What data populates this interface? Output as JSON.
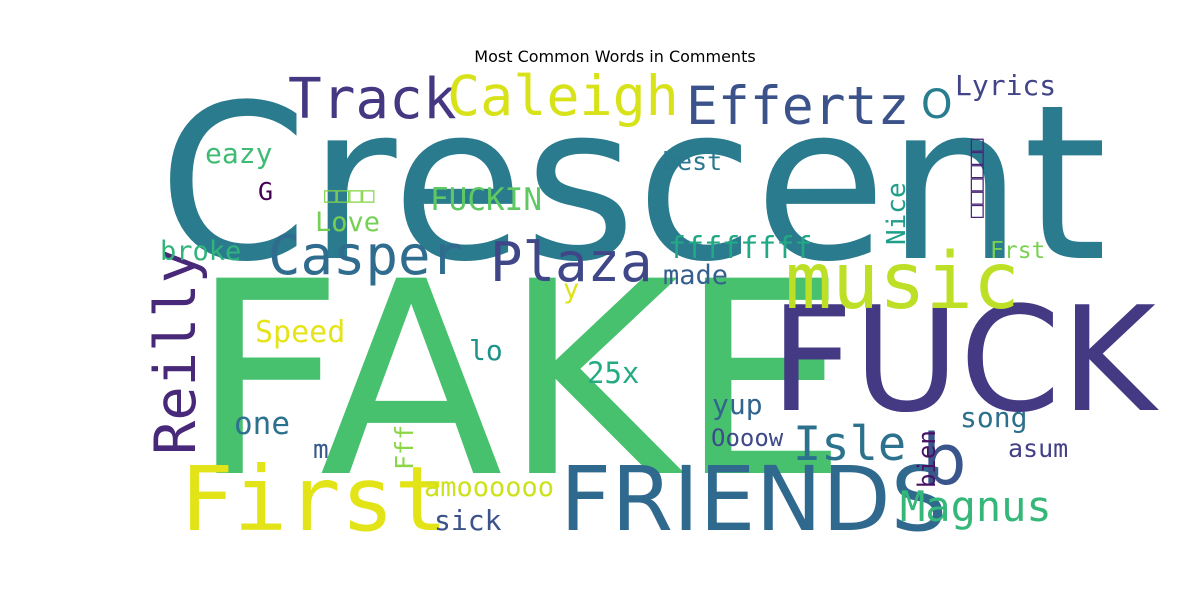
{
  "chart_data": {
    "type": "wordcloud",
    "title": "Most Common Words in Comments",
    "background": "#ffffff",
    "words": [
      {
        "text": "Crescent",
        "color": "#2a7b8e"
      },
      {
        "text": "FAKE",
        "color": "#47c16e"
      },
      {
        "text": "FUCK",
        "color": "#443983"
      },
      {
        "text": "FRIENDS",
        "color": "#30698e"
      },
      {
        "text": "music",
        "color": "#bddf26"
      },
      {
        "text": "First",
        "color": "#e2e418"
      },
      {
        "text": "Track",
        "color": "#453781"
      },
      {
        "text": "Caleigh",
        "color": "#d8e219"
      },
      {
        "text": "Effertz",
        "color": "#3b528b"
      },
      {
        "text": "Casper",
        "color": "#2f6c8e"
      },
      {
        "text": "Plaza",
        "color": "#3f4788"
      },
      {
        "text": "Reilly",
        "color": "#482878"
      },
      {
        "text": "Isle",
        "color": "#2c728e"
      },
      {
        "text": "Magnus",
        "color": "#35b779"
      },
      {
        "text": "b",
        "color": "#3a548c"
      },
      {
        "text": "O",
        "color": "#287d8e"
      },
      {
        "text": "Lyrics",
        "color": "#414487"
      },
      {
        "text": "eazy",
        "color": "#3fbc73"
      },
      {
        "text": "best",
        "color": "#2a788e"
      },
      {
        "text": "G",
        "color": "#440154"
      },
      {
        "text": "□□□□",
        "color": "#84d44b"
      },
      {
        "text": "FUCKIN",
        "color": "#5ec962"
      },
      {
        "text": "□□□□□□",
        "color": "#482475"
      },
      {
        "text": "Love",
        "color": "#75d054"
      },
      {
        "text": "Nice",
        "color": "#1f9e89"
      },
      {
        "text": "ffffffff",
        "color": "#22a884"
      },
      {
        "text": "Frst",
        "color": "#7ad151"
      },
      {
        "text": "broke",
        "color": "#2fb47c"
      },
      {
        "text": "made",
        "color": "#355f8d"
      },
      {
        "text": "y",
        "color": "#dde318"
      },
      {
        "text": "Speed",
        "color": "#e5e419"
      },
      {
        "text": "lo",
        "color": "#20928c"
      },
      {
        "text": "25x",
        "color": "#25ab82"
      },
      {
        "text": "yup",
        "color": "#32648e"
      },
      {
        "text": "one",
        "color": "#2c728e"
      },
      {
        "text": "song",
        "color": "#2d708e"
      },
      {
        "text": "Oooow",
        "color": "#3e4a89"
      },
      {
        "text": "m",
        "color": "#38598c"
      },
      {
        "text": "Fff",
        "color": "#8bd646"
      },
      {
        "text": "bien",
        "color": "#471164"
      },
      {
        "text": "asum",
        "color": "#433e85"
      },
      {
        "text": "amoooooo",
        "color": "#cde11d"
      },
      {
        "text": "sick",
        "color": "#3b528b"
      }
    ]
  }
}
